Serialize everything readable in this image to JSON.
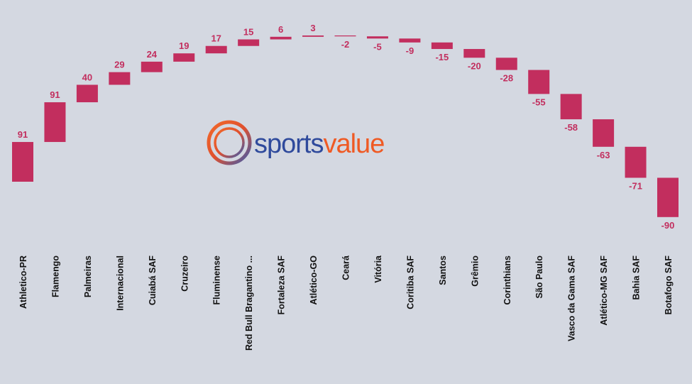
{
  "chart_data": {
    "type": "waterfall",
    "title": "",
    "categories": [
      "Athletico-PR",
      "Flamengo",
      "Palmeiras",
      "Internacional",
      "Cuiabá SAF",
      "Cruzeiro",
      "Fluminense",
      "Red Bull Bragantino ...",
      "Fortaleza SAF",
      "Atlético-GO",
      "Ceará",
      "Vitória",
      "Coritiba SAF",
      "Santos",
      "Grêmio",
      "Corinthians",
      "São Paulo",
      "Vasco da Gama SAF",
      "Atlético-MG SAF",
      "Bahia SAF",
      "Botafogo SAF"
    ],
    "values": [
      91,
      91,
      40,
      29,
      24,
      19,
      17,
      15,
      6,
      3,
      -2,
      -5,
      -9,
      -15,
      -20,
      -28,
      -55,
      -58,
      -63,
      -71,
      -90
    ],
    "bar_color": "#c22e5e",
    "grid": false,
    "legend": "none"
  },
  "logo": {
    "text_part1": "sports",
    "text_part2": "value"
  }
}
